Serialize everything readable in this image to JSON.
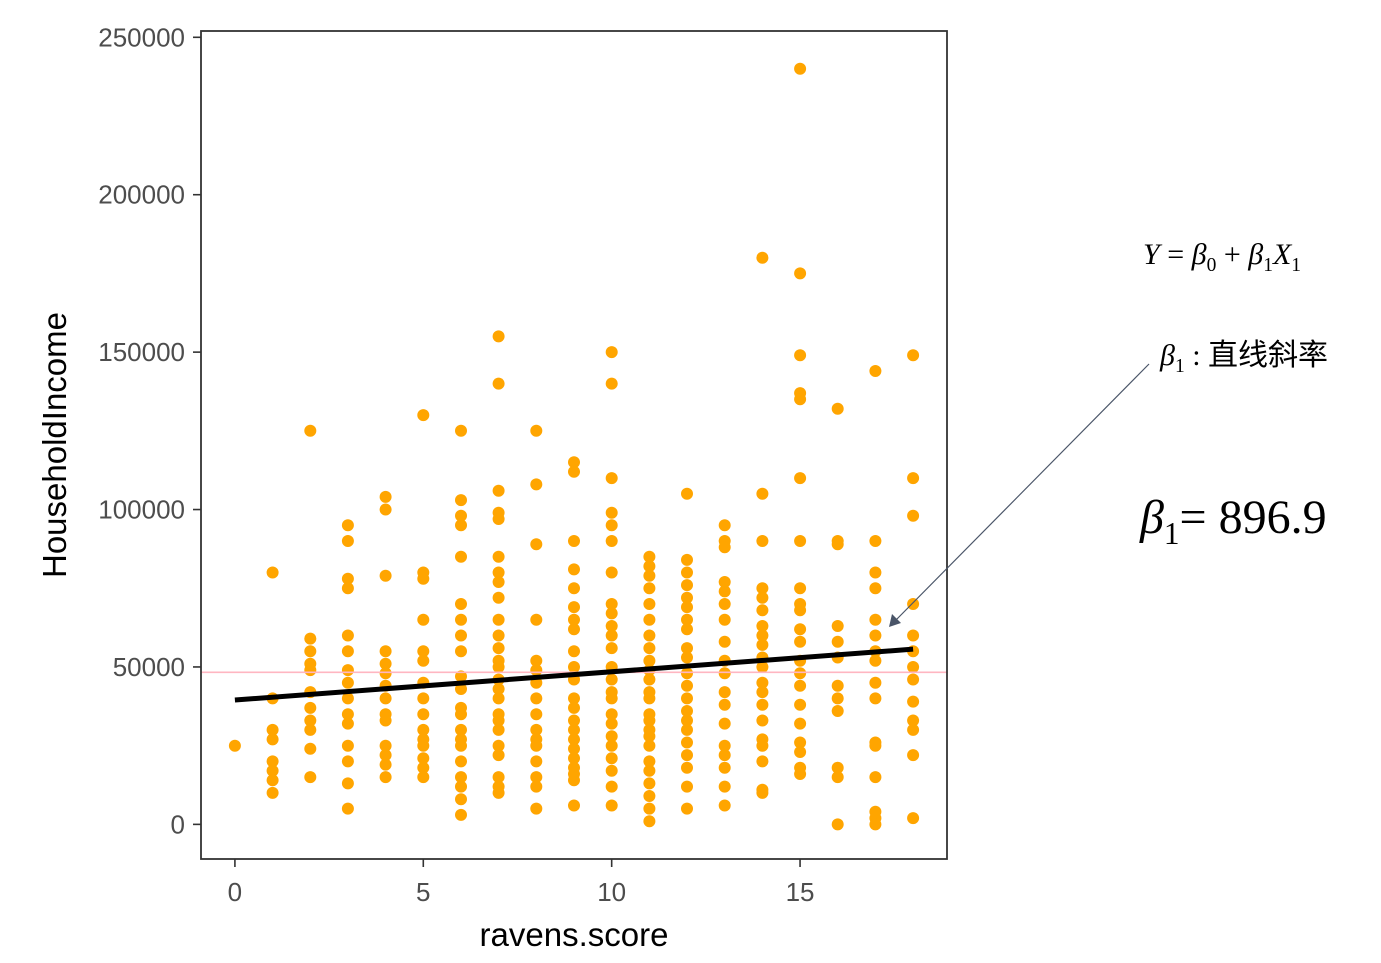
{
  "colors": {
    "points": "#FFA500",
    "fit_line": "#000000",
    "mean_line": "#FFB6C1",
    "panel_border": "#333333"
  },
  "annotations": {
    "formula": {
      "lhs": "Y",
      "eq": " = ",
      "b0": "β",
      "b0_sub": "0",
      "plus": " + ",
      "b1": "β",
      "b1_sub": "1",
      "x1": "X",
      "x1_sub": "1"
    },
    "slope_label": {
      "beta": "β",
      "sub": "1",
      "text": " : 直线斜率"
    },
    "slope_value": {
      "beta": "β",
      "sub": "1",
      "text": "= 896.9"
    }
  },
  "chart_data": {
    "type": "scatter",
    "title": "",
    "xlabel": "ravens.score",
    "ylabel": "HouseholdIncome",
    "xlim": [
      -0.9,
      18.9
    ],
    "ylim": [
      -11000,
      252000
    ],
    "x_ticks": [
      0,
      5,
      10,
      15
    ],
    "x_tick_labels": [
      "0",
      "5",
      "10",
      "15"
    ],
    "y_ticks": [
      0,
      50000,
      100000,
      150000,
      200000,
      250000
    ],
    "y_tick_labels": [
      "0",
      "50000",
      "100000",
      "150000",
      "200000",
      "250000"
    ],
    "grid": false,
    "fit_line": {
      "x": [
        0,
        18
      ],
      "y": [
        39500,
        55650
      ],
      "slope": 896.9
    },
    "mean_line": {
      "y": 48300
    },
    "points": [
      [
        0,
        25000
      ],
      [
        1,
        80000
      ],
      [
        1,
        40000
      ],
      [
        1,
        30000
      ],
      [
        1,
        27000
      ],
      [
        1,
        20000
      ],
      [
        1,
        17000
      ],
      [
        1,
        14000
      ],
      [
        1,
        10000
      ],
      [
        2,
        125000
      ],
      [
        2,
        59000
      ],
      [
        2,
        55000
      ],
      [
        2,
        51000
      ],
      [
        2,
        49000
      ],
      [
        2,
        42000
      ],
      [
        2,
        37000
      ],
      [
        2,
        33000
      ],
      [
        2,
        30000
      ],
      [
        2,
        24000
      ],
      [
        2,
        15000
      ],
      [
        3,
        95000
      ],
      [
        3,
        90000
      ],
      [
        3,
        78000
      ],
      [
        3,
        75000
      ],
      [
        3,
        60000
      ],
      [
        3,
        55000
      ],
      [
        3,
        49000
      ],
      [
        3,
        45000
      ],
      [
        3,
        40000
      ],
      [
        3,
        35000
      ],
      [
        3,
        32000
      ],
      [
        3,
        25000
      ],
      [
        3,
        20000
      ],
      [
        3,
        13000
      ],
      [
        3,
        5000
      ],
      [
        4,
        104000
      ],
      [
        4,
        100000
      ],
      [
        4,
        79000
      ],
      [
        4,
        55000
      ],
      [
        4,
        51000
      ],
      [
        4,
        48000
      ],
      [
        4,
        44000
      ],
      [
        4,
        40000
      ],
      [
        4,
        35000
      ],
      [
        4,
        33000
      ],
      [
        4,
        25000
      ],
      [
        4,
        22000
      ],
      [
        4,
        19000
      ],
      [
        4,
        15000
      ],
      [
        5,
        130000
      ],
      [
        5,
        80000
      ],
      [
        5,
        78000
      ],
      [
        5,
        65000
      ],
      [
        5,
        55000
      ],
      [
        5,
        52000
      ],
      [
        5,
        45000
      ],
      [
        5,
        40000
      ],
      [
        5,
        35000
      ],
      [
        5,
        30000
      ],
      [
        5,
        27000
      ],
      [
        5,
        25000
      ],
      [
        5,
        21000
      ],
      [
        5,
        18000
      ],
      [
        5,
        15000
      ],
      [
        6,
        125000
      ],
      [
        6,
        103000
      ],
      [
        6,
        98000
      ],
      [
        6,
        95000
      ],
      [
        6,
        85000
      ],
      [
        6,
        70000
      ],
      [
        6,
        65000
      ],
      [
        6,
        60000
      ],
      [
        6,
        55000
      ],
      [
        6,
        47000
      ],
      [
        6,
        43000
      ],
      [
        6,
        37000
      ],
      [
        6,
        35000
      ],
      [
        6,
        30000
      ],
      [
        6,
        27000
      ],
      [
        6,
        25000
      ],
      [
        6,
        20000
      ],
      [
        6,
        15000
      ],
      [
        6,
        12000
      ],
      [
        6,
        8000
      ],
      [
        6,
        3000
      ],
      [
        7,
        155000
      ],
      [
        7,
        140000
      ],
      [
        7,
        106000
      ],
      [
        7,
        99000
      ],
      [
        7,
        97000
      ],
      [
        7,
        85000
      ],
      [
        7,
        80000
      ],
      [
        7,
        77000
      ],
      [
        7,
        72000
      ],
      [
        7,
        65000
      ],
      [
        7,
        60000
      ],
      [
        7,
        56000
      ],
      [
        7,
        52000
      ],
      [
        7,
        50000
      ],
      [
        7,
        46000
      ],
      [
        7,
        43000
      ],
      [
        7,
        40000
      ],
      [
        7,
        35000
      ],
      [
        7,
        33000
      ],
      [
        7,
        30000
      ],
      [
        7,
        25000
      ],
      [
        7,
        22000
      ],
      [
        7,
        15000
      ],
      [
        7,
        12000
      ],
      [
        7,
        10000
      ],
      [
        8,
        125000
      ],
      [
        8,
        108000
      ],
      [
        8,
        89000
      ],
      [
        8,
        65000
      ],
      [
        8,
        52000
      ],
      [
        8,
        49000
      ],
      [
        8,
        45000
      ],
      [
        8,
        40000
      ],
      [
        8,
        35000
      ],
      [
        8,
        30000
      ],
      [
        8,
        27000
      ],
      [
        8,
        25000
      ],
      [
        8,
        20000
      ],
      [
        8,
        15000
      ],
      [
        8,
        12000
      ],
      [
        8,
        5000
      ],
      [
        9,
        115000
      ],
      [
        9,
        112000
      ],
      [
        9,
        90000
      ],
      [
        9,
        81000
      ],
      [
        9,
        75000
      ],
      [
        9,
        69000
      ],
      [
        9,
        65000
      ],
      [
        9,
        62000
      ],
      [
        9,
        55000
      ],
      [
        9,
        50000
      ],
      [
        9,
        46000
      ],
      [
        9,
        40000
      ],
      [
        9,
        37000
      ],
      [
        9,
        33000
      ],
      [
        9,
        30000
      ],
      [
        9,
        27000
      ],
      [
        9,
        24000
      ],
      [
        9,
        21000
      ],
      [
        9,
        18000
      ],
      [
        9,
        16000
      ],
      [
        9,
        14000
      ],
      [
        9,
        6000
      ],
      [
        10,
        150000
      ],
      [
        10,
        140000
      ],
      [
        10,
        110000
      ],
      [
        10,
        99000
      ],
      [
        10,
        95000
      ],
      [
        10,
        90000
      ],
      [
        10,
        80000
      ],
      [
        10,
        70000
      ],
      [
        10,
        67000
      ],
      [
        10,
        63000
      ],
      [
        10,
        60000
      ],
      [
        10,
        56000
      ],
      [
        10,
        50000
      ],
      [
        10,
        46000
      ],
      [
        10,
        42000
      ],
      [
        10,
        40000
      ],
      [
        10,
        35000
      ],
      [
        10,
        32000
      ],
      [
        10,
        28000
      ],
      [
        10,
        25000
      ],
      [
        10,
        21000
      ],
      [
        10,
        17000
      ],
      [
        10,
        12000
      ],
      [
        10,
        6000
      ],
      [
        11,
        85000
      ],
      [
        11,
        82000
      ],
      [
        11,
        79000
      ],
      [
        11,
        75000
      ],
      [
        11,
        70000
      ],
      [
        11,
        65000
      ],
      [
        11,
        60000
      ],
      [
        11,
        56000
      ],
      [
        11,
        52000
      ],
      [
        11,
        49000
      ],
      [
        11,
        46000
      ],
      [
        11,
        42000
      ],
      [
        11,
        40000
      ],
      [
        11,
        35000
      ],
      [
        11,
        33000
      ],
      [
        11,
        30000
      ],
      [
        11,
        28000
      ],
      [
        11,
        25000
      ],
      [
        11,
        20000
      ],
      [
        11,
        17000
      ],
      [
        11,
        13000
      ],
      [
        11,
        9000
      ],
      [
        11,
        5000
      ],
      [
        11,
        1000
      ],
      [
        12,
        105000
      ],
      [
        12,
        84000
      ],
      [
        12,
        80000
      ],
      [
        12,
        76000
      ],
      [
        12,
        72000
      ],
      [
        12,
        69000
      ],
      [
        12,
        65000
      ],
      [
        12,
        62000
      ],
      [
        12,
        56000
      ],
      [
        12,
        53000
      ],
      [
        12,
        48000
      ],
      [
        12,
        44000
      ],
      [
        12,
        40000
      ],
      [
        12,
        36000
      ],
      [
        12,
        33000
      ],
      [
        12,
        30000
      ],
      [
        12,
        26000
      ],
      [
        12,
        22000
      ],
      [
        12,
        18000
      ],
      [
        12,
        12000
      ],
      [
        12,
        5000
      ],
      [
        13,
        95000
      ],
      [
        13,
        90000
      ],
      [
        13,
        88000
      ],
      [
        13,
        77000
      ],
      [
        13,
        74000
      ],
      [
        13,
        70000
      ],
      [
        13,
        65000
      ],
      [
        13,
        58000
      ],
      [
        13,
        52000
      ],
      [
        13,
        48000
      ],
      [
        13,
        42000
      ],
      [
        13,
        38000
      ],
      [
        13,
        32000
      ],
      [
        13,
        25000
      ],
      [
        13,
        22000
      ],
      [
        13,
        18000
      ],
      [
        13,
        12000
      ],
      [
        13,
        6000
      ],
      [
        14,
        180000
      ],
      [
        14,
        105000
      ],
      [
        14,
        90000
      ],
      [
        14,
        75000
      ],
      [
        14,
        72000
      ],
      [
        14,
        68000
      ],
      [
        14,
        63000
      ],
      [
        14,
        60000
      ],
      [
        14,
        57000
      ],
      [
        14,
        53000
      ],
      [
        14,
        50000
      ],
      [
        14,
        45000
      ],
      [
        14,
        42000
      ],
      [
        14,
        38000
      ],
      [
        14,
        33000
      ],
      [
        14,
        27000
      ],
      [
        14,
        25000
      ],
      [
        14,
        20000
      ],
      [
        14,
        11000
      ],
      [
        14,
        10000
      ],
      [
        15,
        240000
      ],
      [
        15,
        175000
      ],
      [
        15,
        149000
      ],
      [
        15,
        137000
      ],
      [
        15,
        135000
      ],
      [
        15,
        110000
      ],
      [
        15,
        90000
      ],
      [
        15,
        75000
      ],
      [
        15,
        70000
      ],
      [
        15,
        68000
      ],
      [
        15,
        62000
      ],
      [
        15,
        58000
      ],
      [
        15,
        52000
      ],
      [
        15,
        48000
      ],
      [
        15,
        44000
      ],
      [
        15,
        38000
      ],
      [
        15,
        32000
      ],
      [
        15,
        26000
      ],
      [
        15,
        23000
      ],
      [
        15,
        18000
      ],
      [
        15,
        16000
      ],
      [
        16,
        132000
      ],
      [
        16,
        90000
      ],
      [
        16,
        89000
      ],
      [
        16,
        63000
      ],
      [
        16,
        58000
      ],
      [
        16,
        53000
      ],
      [
        16,
        44000
      ],
      [
        16,
        40000
      ],
      [
        16,
        36000
      ],
      [
        16,
        18000
      ],
      [
        16,
        15000
      ],
      [
        16,
        0
      ],
      [
        17,
        144000
      ],
      [
        17,
        90000
      ],
      [
        17,
        80000
      ],
      [
        17,
        75000
      ],
      [
        17,
        65000
      ],
      [
        17,
        60000
      ],
      [
        17,
        55000
      ],
      [
        17,
        52000
      ],
      [
        17,
        45000
      ],
      [
        17,
        40000
      ],
      [
        17,
        26000
      ],
      [
        17,
        25000
      ],
      [
        17,
        15000
      ],
      [
        17,
        4000
      ],
      [
        17,
        2000
      ],
      [
        17,
        0
      ],
      [
        18,
        149000
      ],
      [
        18,
        110000
      ],
      [
        18,
        98000
      ],
      [
        18,
        70000
      ],
      [
        18,
        60000
      ],
      [
        18,
        55000
      ],
      [
        18,
        50000
      ],
      [
        18,
        46000
      ],
      [
        18,
        39000
      ],
      [
        18,
        33000
      ],
      [
        18,
        30000
      ],
      [
        18,
        22000
      ],
      [
        18,
        2000
      ]
    ]
  }
}
